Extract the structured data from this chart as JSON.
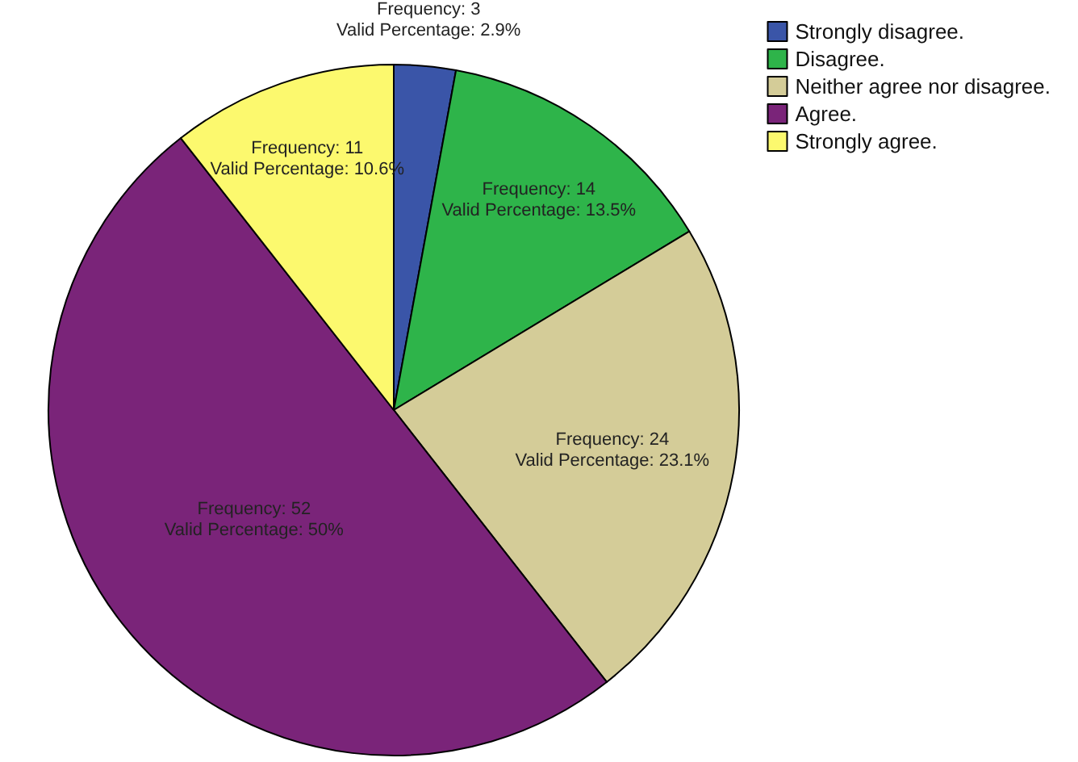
{
  "chart_data": {
    "type": "pie",
    "categories": [
      "Strongly disagree.",
      "Disagree.",
      "Neither agree nor disagree.",
      "Agree.",
      "Strongly agree."
    ],
    "values": [
      3,
      14,
      24,
      52,
      11
    ],
    "colors": [
      "#3a55a8",
      "#2eb44a",
      "#d4cc98",
      "#7a2479",
      "#fcf96e"
    ],
    "value_labels": [
      "Frequency: 3\nValid Percentage: 2.9%",
      "Frequency: 14\nValid Percentage: 13.5%",
      "Frequency: 24\nValid Percentage: 23.1%",
      "Frequency: 52\nValid Percentage: 50%",
      "Frequency: 11\nValid Percentage: 10.6%"
    ],
    "legend": "top right"
  }
}
